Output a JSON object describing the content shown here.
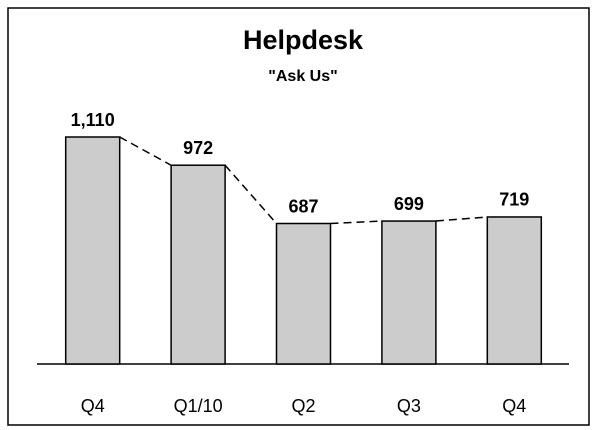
{
  "chart_data": {
    "type": "bar",
    "title": "Helpdesk",
    "subtitle": "\"Ask Us\"",
    "categories": [
      "Q4",
      "Q1/10",
      "Q2",
      "Q3",
      "Q4"
    ],
    "values": [
      1110,
      972,
      687,
      699,
      719
    ],
    "value_labels": [
      "1,110",
      "972",
      "687",
      "699",
      "719"
    ],
    "color": "#cccccc",
    "connector_lines": true
  }
}
